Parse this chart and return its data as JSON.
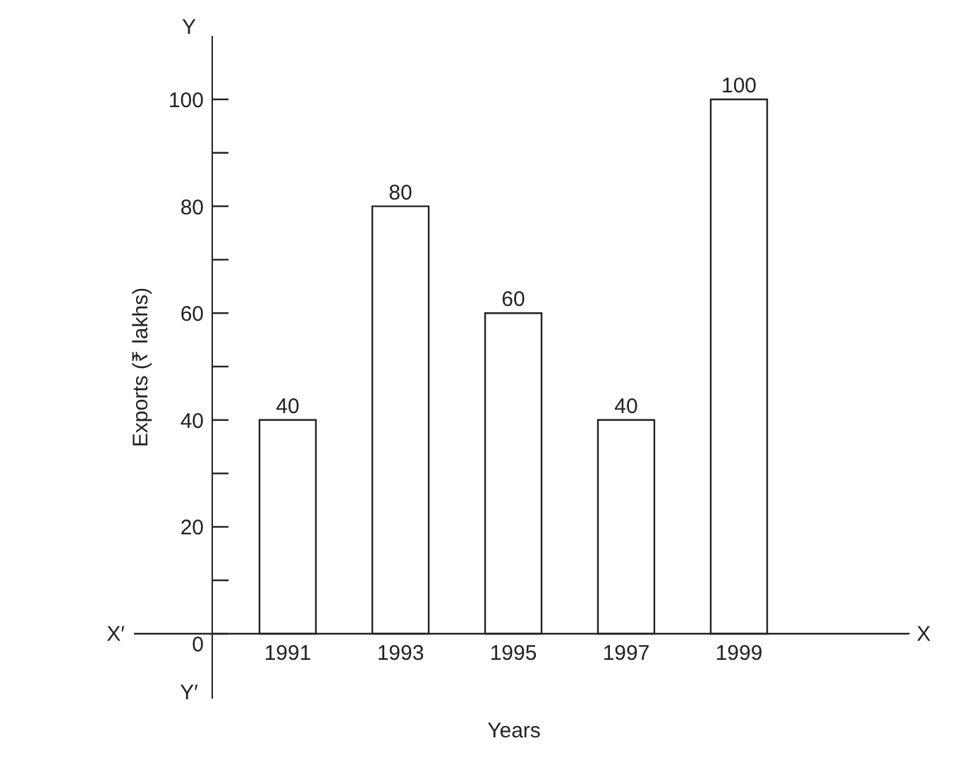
{
  "chart_data": {
    "type": "bar",
    "xlabel": "Years",
    "ylabel": "Exports (₹ lakhs)",
    "categories": [
      "1991",
      "1993",
      "1995",
      "1997",
      "1999"
    ],
    "values": [
      40,
      80,
      60,
      40,
      100
    ],
    "color": "#ffffff",
    "ylim": [
      -12,
      112
    ],
    "yticks": [
      0,
      {
        "value": 10,
        "label": null
      },
      20,
      {
        "value": 30,
        "label": null
      },
      40,
      {
        "value": 50,
        "label": null
      },
      60,
      {
        "value": 70,
        "label": null
      },
      80,
      {
        "value": 90,
        "label": null
      },
      100
    ],
    "data_labels": true,
    "grid": false,
    "legend": false,
    "annotations": [
      "X′",
      "X",
      "Y",
      "Y′"
    ]
  }
}
